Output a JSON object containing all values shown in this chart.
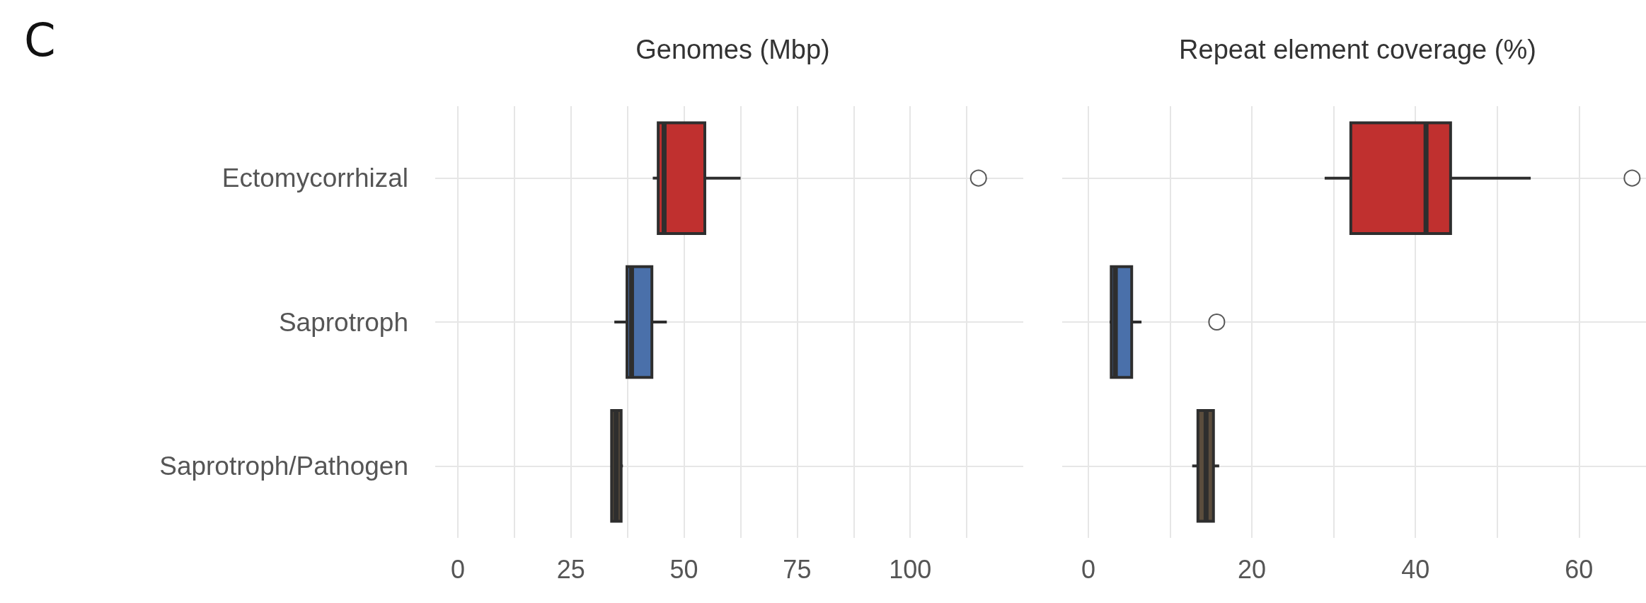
{
  "chart_data": [
    {
      "type": "box",
      "title": "Genomes (Mbp)",
      "annotations": [
        "C"
      ],
      "categories": [
        "Ectomycorrhizal",
        "Saprotroph",
        "Saprotroph/Pathogen"
      ],
      "colors": [
        "#c0302f",
        "#4a70aa",
        "#5b4d3d"
      ],
      "boxes": [
        {
          "low": 43.1,
          "q1": 44.3,
          "median": 45.6,
          "q3": 54.6,
          "high": 62.5,
          "outliers": [
            115.1
          ]
        },
        {
          "low": 34.6,
          "q1": 37.4,
          "median": 38.4,
          "q3": 42.9,
          "high": 46.2
        },
        {
          "low": 33.8,
          "q1": 34.0,
          "median": 35.0,
          "q3": 36.1,
          "high": 36.5
        }
      ],
      "orientation": "horizontal",
      "xlim": [
        -5,
        125
      ],
      "xticks": [
        0,
        {
          "value": 12.5,
          "label": null
        },
        25,
        {
          "value": 37.5,
          "label": null
        },
        50,
        {
          "value": 62.5,
          "label": null
        },
        75,
        {
          "value": 87.5,
          "label": null
        },
        100,
        {
          "value": 112.5,
          "label": null
        }
      ],
      "grid": true
    },
    {
      "type": "box",
      "title": "Repeat element coverage (%)",
      "categories": [
        null,
        null,
        null
      ],
      "colors": [
        "#c0302f",
        "#4a70aa",
        "#5b4d3d"
      ],
      "boxes": [
        {
          "low": 28.9,
          "q1": 32.1,
          "median": 41.3,
          "q3": 44.3,
          "high": 54.1,
          "outliers": [
            66.5
          ]
        },
        {
          "low": 2.6,
          "q1": 2.8,
          "median": 3.3,
          "q3": 5.3,
          "high": 6.5,
          "outliers": [
            15.7
          ]
        },
        {
          "low": 12.7,
          "q1": 13.4,
          "median": 14.4,
          "q3": 15.3,
          "high": 16.0
        }
      ],
      "orientation": "horizontal",
      "xlim": [
        -3.2,
        68.2
      ],
      "xticks": [
        0,
        {
          "value": 10,
          "label": null
        },
        20,
        {
          "value": 30,
          "label": null
        },
        40,
        {
          "value": 50,
          "label": null
        },
        60
      ],
      "grid": true,
      "tick_labels": "x"
    }
  ]
}
